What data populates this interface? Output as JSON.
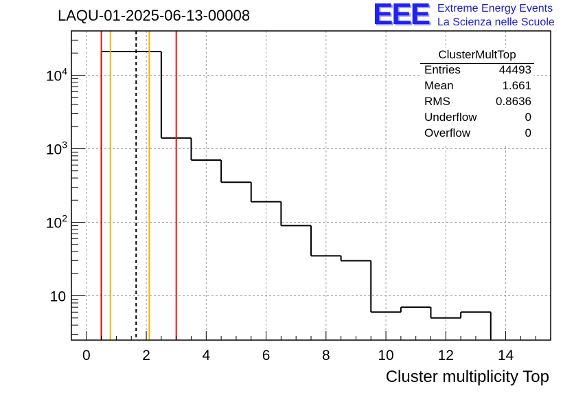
{
  "title": "LAQU-01-2025-06-13-00008",
  "logo": {
    "mark": "EEE",
    "line1": "Extreme Energy Events",
    "line2": "La Scienza nelle Scuole"
  },
  "stats": {
    "name": "ClusterMultTop",
    "rows": [
      {
        "label": "Entries",
        "value": "44493"
      },
      {
        "label": "Mean",
        "value": "1.661"
      },
      {
        "label": "RMS",
        "value": "0.8636"
      },
      {
        "label": "Underflow",
        "value": "0"
      },
      {
        "label": "Overflow",
        "value": "0"
      }
    ]
  },
  "chart_data": {
    "type": "histogram",
    "title": "LAQU-01-2025-06-13-00008",
    "xlabel": "Cluster multiplicity Top",
    "ylabel": "",
    "xlim": [
      -0.5,
      15.5
    ],
    "ylim": [
      2.5,
      40000
    ],
    "yscale": "log",
    "grid": true,
    "bin_width": 1,
    "bin_centers": [
      1,
      2,
      3,
      4,
      5,
      6,
      7,
      8,
      9,
      10,
      11,
      12,
      13
    ],
    "values": [
      21000,
      21000,
      1400,
      700,
      350,
      190,
      90,
      35,
      30,
      6,
      7,
      5,
      6
    ],
    "x_ticks": [
      0,
      2,
      4,
      6,
      8,
      10,
      12,
      14
    ],
    "x_tick_labels": [
      "0",
      "2",
      "4",
      "6",
      "8",
      "10",
      "12",
      "14"
    ],
    "y_ticks": [
      10,
      100,
      1000,
      10000
    ],
    "y_tick_labels": [
      {
        "base": "10",
        "exp": ""
      },
      {
        "base": "10",
        "exp": "2"
      },
      {
        "base": "10",
        "exp": "3"
      },
      {
        "base": "10",
        "exp": "4"
      }
    ],
    "vertical_lines": [
      {
        "x": 0.5,
        "color": "#ee1111",
        "style": "solid"
      },
      {
        "x": 0.8,
        "color": "#f0b400",
        "style": "solid"
      },
      {
        "x": 1.661,
        "color": "#000000",
        "style": "dashed"
      },
      {
        "x": 2.1,
        "color": "#f0b400",
        "style": "solid"
      },
      {
        "x": 3.0,
        "color": "#ee1111",
        "style": "solid"
      }
    ]
  }
}
